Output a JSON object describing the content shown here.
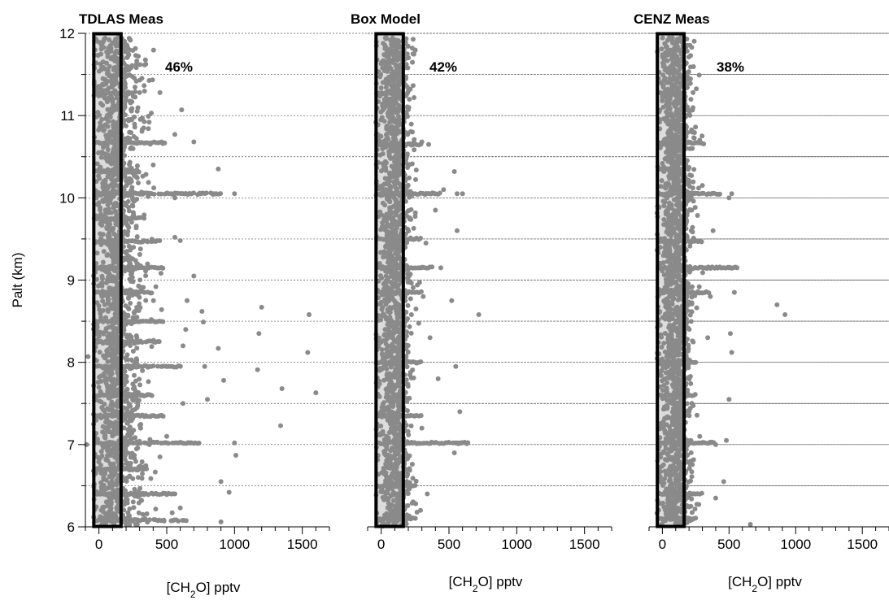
{
  "chart_data": [
    {
      "type": "scatter",
      "title": "TDLAS Meas",
      "annotation": "46%",
      "xlabel": {
        "pre": "[CH",
        "sub": "2",
        "post": "O] pptv"
      },
      "ylabel": "Palt (km)",
      "xlim": [
        -100,
        1700
      ],
      "ylim": [
        6,
        12
      ],
      "xticks": [
        "0",
        "500",
        "1000",
        "1500"
      ],
      "yticks": [
        "6",
        "7",
        "8",
        "9",
        "10",
        "11",
        "12"
      ],
      "grid": "horizontal dashed every 0.5 km",
      "highlight_band": [
        -50,
        175
      ],
      "marker_color": "#8a8a8a",
      "spread": 1.0,
      "points": [
        [
          1200,
          8.67
        ],
        [
          1550,
          8.58
        ],
        [
          1540,
          8.12
        ],
        [
          1600,
          7.63
        ],
        [
          1350,
          7.68
        ],
        [
          1340,
          7.23
        ],
        [
          1180,
          8.35
        ],
        [
          1170,
          7.91
        ],
        [
          1000,
          10.05
        ],
        [
          880,
          10.35
        ],
        [
          960,
          6.42
        ],
        [
          900,
          6.06
        ],
        [
          900,
          6.55
        ],
        [
          1010,
          6.87
        ],
        [
          1000,
          7.02
        ],
        [
          880,
          8.17
        ],
        [
          920,
          7.78
        ],
        [
          610,
          11.07
        ],
        [
          450,
          11.28
        ],
        [
          600,
          9.48
        ],
        [
          800,
          7.55
        ],
        [
          780,
          7.95
        ],
        [
          770,
          8.49
        ],
        [
          760,
          8.62
        ],
        [
          700,
          10.68
        ],
        [
          560,
          10.77
        ],
        [
          560,
          10.0
        ],
        [
          850,
          10.05
        ],
        [
          750,
          10.05
        ],
        [
          560,
          9.52
        ],
        [
          700,
          9.05
        ],
        [
          650,
          8.75
        ],
        [
          640,
          8.4
        ],
        [
          620,
          8.2
        ],
        [
          620,
          7.5
        ],
        [
          500,
          7.1
        ],
        [
          500,
          7.02
        ],
        [
          540,
          6.17
        ],
        [
          480,
          6.07
        ],
        [
          560,
          6.4
        ],
        [
          600,
          6.23
        ],
        [
          450,
          6.85
        ],
        [
          420,
          8.92
        ],
        [
          400,
          10.4
        ],
        [
          370,
          10.92
        ],
        [
          300,
          11.28
        ],
        [
          330,
          10.85
        ],
        [
          240,
          10.2
        ],
        [
          250,
          9.9
        ],
        [
          280,
          9.2
        ],
        [
          260,
          8.6
        ],
        [
          280,
          8.3
        ],
        [
          260,
          7.6
        ],
        [
          290,
          6.6
        ],
        [
          110,
          11.88
        ],
        [
          150,
          11.88
        ],
        [
          -80,
          8.07
        ],
        [
          -90,
          7.0
        ]
      ],
      "stripes": [
        [
          6.08,
          650
        ],
        [
          6.4,
          550
        ],
        [
          6.7,
          350
        ],
        [
          7.02,
          750
        ],
        [
          7.35,
          500
        ],
        [
          7.6,
          400
        ],
        [
          7.95,
          600
        ],
        [
          8.25,
          450
        ],
        [
          8.5,
          500
        ],
        [
          8.85,
          400
        ],
        [
          9.15,
          500
        ],
        [
          9.47,
          500
        ],
        [
          9.75,
          350
        ],
        [
          10.05,
          900
        ],
        [
          10.32,
          300
        ],
        [
          10.67,
          500
        ],
        [
          11.27,
          250
        ]
      ]
    },
    {
      "type": "scatter",
      "title": "Box Model",
      "annotation": "42%",
      "xlabel": {
        "pre": "[CH",
        "sub": "2",
        "post": "O] pptv"
      },
      "ylabel": "",
      "xlim": [
        -100,
        1700
      ],
      "ylim": [
        6,
        12
      ],
      "xticks": [
        "0",
        "500",
        "1000",
        "1500"
      ],
      "yticks": [],
      "grid": "horizontal dashed every 0.5 km",
      "highlight_band": [
        -50,
        175
      ],
      "marker_color": "#8a8a8a",
      "spread": 0.5,
      "points": [
        [
          720,
          8.58
        ],
        [
          540,
          10.32
        ],
        [
          560,
          10.05
        ],
        [
          600,
          10.05
        ],
        [
          560,
          9.6
        ],
        [
          580,
          7.4
        ],
        [
          540,
          6.9
        ],
        [
          550,
          7.95
        ],
        [
          620,
          7.02
        ],
        [
          580,
          7.02
        ],
        [
          520,
          8.75
        ],
        [
          560,
          7.02
        ],
        [
          460,
          10.1
        ],
        [
          440,
          9.15
        ],
        [
          420,
          7.8
        ],
        [
          400,
          9.85
        ],
        [
          350,
          10.65
        ],
        [
          360,
          8.3
        ],
        [
          340,
          6.4
        ],
        [
          300,
          10.68
        ],
        [
          330,
          9.45
        ],
        [
          310,
          8.8
        ],
        [
          300,
          7.2
        ],
        [
          290,
          6.2
        ],
        [
          80,
          11.88
        ],
        [
          90,
          11.78
        ],
        [
          60,
          11.6
        ],
        [
          200,
          11.3
        ],
        [
          160,
          11.05
        ],
        [
          230,
          10.8
        ],
        [
          110,
          11.85
        ],
        [
          130,
          11.3
        ]
      ],
      "stripes": [
        [
          6.1,
          250
        ],
        [
          6.5,
          250
        ],
        [
          7.02,
          650
        ],
        [
          7.35,
          300
        ],
        [
          8.0,
          300
        ],
        [
          8.85,
          300
        ],
        [
          9.15,
          380
        ],
        [
          9.5,
          300
        ],
        [
          10.05,
          450
        ],
        [
          10.65,
          300
        ],
        [
          11.27,
          150
        ]
      ]
    },
    {
      "type": "scatter",
      "title": "CENZ Meas",
      "annotation": "38%",
      "xlabel": {
        "pre": "[CH",
        "sub": "2",
        "post": "O] pptv"
      },
      "ylabel": "",
      "xlim": [
        -100,
        1700
      ],
      "ylim": [
        6,
        12
      ],
      "xticks": [
        "0",
        "500",
        "1000",
        "1500"
      ],
      "yticks": [],
      "grid": "horizontal dashed every 0.5 km",
      "highlight_band": [
        -50,
        175
      ],
      "marker_color": "#8a8a8a",
      "spread": 0.55,
      "points": [
        [
          920,
          8.58
        ],
        [
          860,
          8.7
        ],
        [
          660,
          6.03
        ],
        [
          520,
          10.05
        ],
        [
          500,
          10.0
        ],
        [
          500,
          9.15
        ],
        [
          560,
          9.15
        ],
        [
          540,
          8.85
        ],
        [
          510,
          8.35
        ],
        [
          520,
          8.12
        ],
        [
          480,
          7.05
        ],
        [
          460,
          6.55
        ],
        [
          400,
          6.35
        ],
        [
          500,
          7.55
        ],
        [
          400,
          7.0
        ],
        [
          380,
          9.6
        ],
        [
          360,
          8.8
        ],
        [
          340,
          8.3
        ],
        [
          280,
          10.7
        ],
        [
          300,
          10.15
        ],
        [
          230,
          11.28
        ],
        [
          240,
          10.05
        ],
        [
          220,
          9.85
        ],
        [
          200,
          7.4
        ],
        [
          280,
          7.1
        ],
        [
          180,
          6.8
        ],
        [
          100,
          11.9
        ],
        [
          150,
          11.9
        ],
        [
          40,
          11.8
        ]
      ],
      "stripes": [
        [
          6.1,
          250
        ],
        [
          6.4,
          300
        ],
        [
          7.02,
          400
        ],
        [
          7.6,
          250
        ],
        [
          8.0,
          250
        ],
        [
          8.85,
          350
        ],
        [
          9.15,
          550
        ],
        [
          9.47,
          300
        ],
        [
          10.05,
          450
        ],
        [
          10.35,
          200
        ],
        [
          10.67,
          300
        ],
        [
          11.27,
          150
        ]
      ]
    }
  ]
}
